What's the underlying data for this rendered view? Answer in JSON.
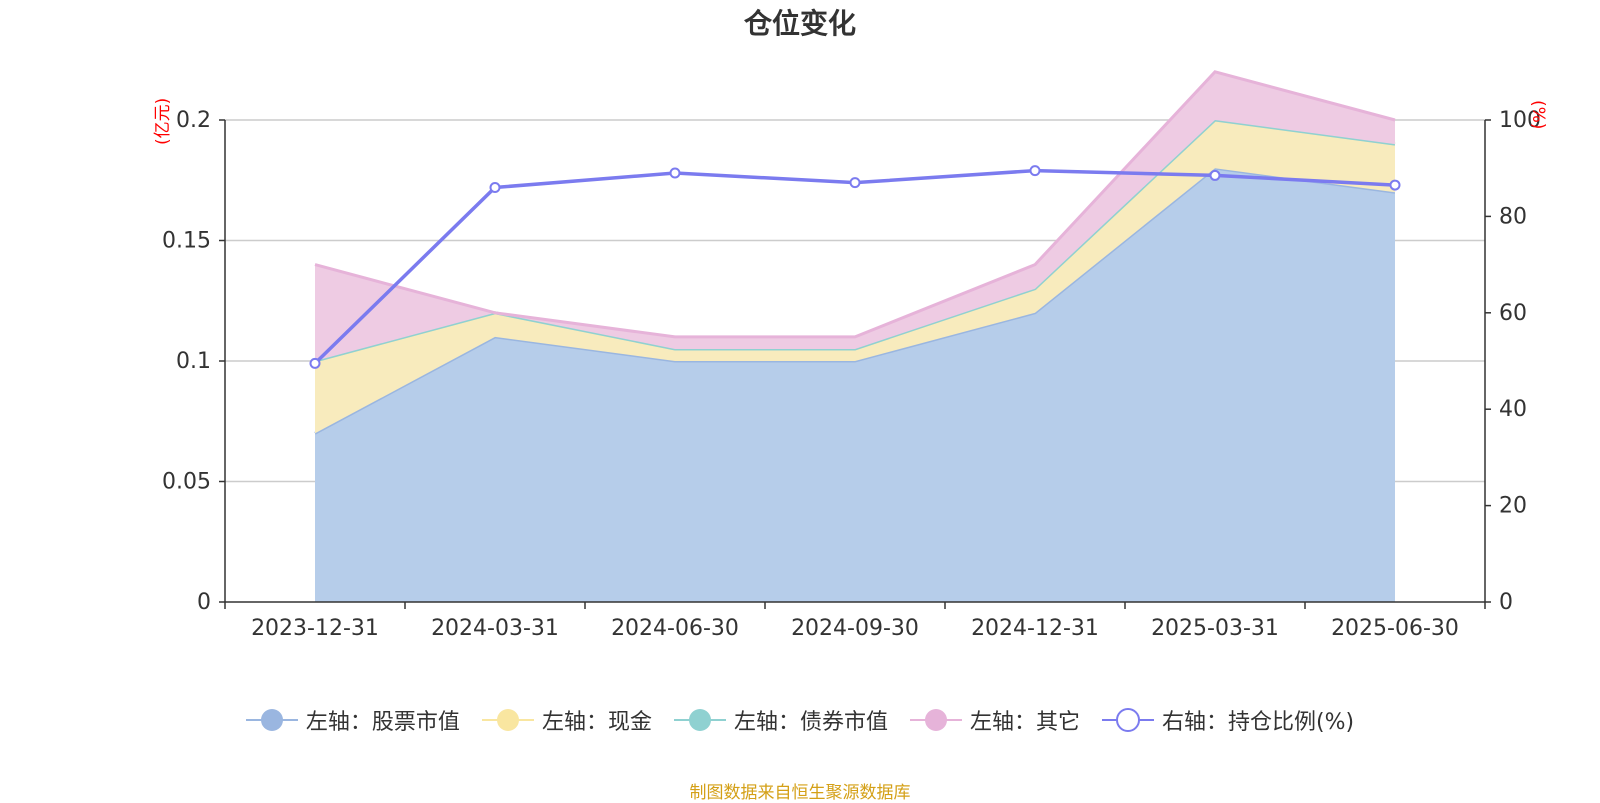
{
  "chart_data": {
    "type": "area",
    "title": "仓位变化",
    "left_unit": "(亿元)",
    "right_unit": "(%)",
    "categories": [
      "2023-12-31",
      "2024-03-31",
      "2024-06-30",
      "2024-09-30",
      "2024-12-31",
      "2025-03-31",
      "2025-06-30"
    ],
    "left_axis": {
      "min": 0,
      "max": 0.2,
      "ticks": [
        "0",
        "0.05",
        "0.1",
        "0.15",
        "0.2"
      ],
      "tick_values": [
        0,
        0.05,
        0.1,
        0.15,
        0.2
      ]
    },
    "right_axis": {
      "min": 0,
      "max": 100,
      "ticks": [
        "0",
        "20",
        "40",
        "60",
        "80",
        "100"
      ],
      "tick_values": [
        0,
        20,
        40,
        60,
        80,
        100
      ]
    },
    "grid": true,
    "legend_position": "bottom",
    "series": [
      {
        "name": "左轴：股票市值",
        "axis": "left",
        "stacked": true,
        "color": "#9ab6e0",
        "fill": "#b6cdea",
        "values": [
          0.07,
          0.11,
          0.1,
          0.1,
          0.12,
          0.18,
          0.17
        ]
      },
      {
        "name": "左轴：现金",
        "axis": "left",
        "stacked": true,
        "color": "#f9e6a0",
        "fill": "#f8ebbd",
        "values": [
          0.03,
          0.01,
          0.005,
          0.005,
          0.01,
          0.02,
          0.02
        ]
      },
      {
        "name": "左轴：债券市值",
        "axis": "left",
        "stacked": true,
        "color": "#8fd1d1",
        "fill": "#a9dede",
        "values": [
          0,
          0,
          0,
          0,
          0,
          0,
          0
        ]
      },
      {
        "name": "左轴：其它",
        "axis": "left",
        "stacked": true,
        "color": "#e6b3d9",
        "fill": "#eecbe3",
        "values": [
          0.04,
          0.0,
          0.005,
          0.005,
          0.01,
          0.02,
          0.01
        ]
      },
      {
        "name": "右轴：持仓比例(%)",
        "axis": "right",
        "type": "line",
        "color": "#7b7bef",
        "values": [
          49.5,
          86,
          89,
          87,
          89.5,
          88.5,
          86.5
        ]
      }
    ],
    "source": "制图数据来自恒生聚源数据库"
  }
}
